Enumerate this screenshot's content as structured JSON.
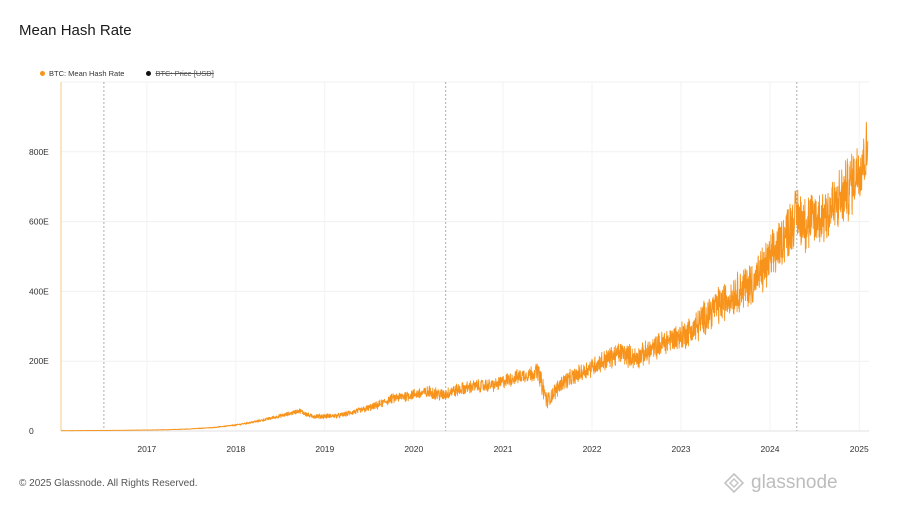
{
  "title": "Mean Hash Rate",
  "legend": [
    {
      "label": "BTC: Mean Hash Rate",
      "color": "#f7931a",
      "active": true
    },
    {
      "label": "BTC: Price [USD]",
      "color": "#111111",
      "active": false
    }
  ],
  "footer": "© 2025 Glassnode. All Rights Reserved.",
  "logo_text": "glassnode",
  "chart_data": {
    "type": "line",
    "title": "Mean Hash Rate",
    "xlabel": "",
    "ylabel": "",
    "x_ticks": [
      "2017",
      "2018",
      "2019",
      "2020",
      "2021",
      "2022",
      "2023",
      "2024",
      "2025"
    ],
    "y_ticks": [
      "0",
      "200E",
      "400E",
      "600E",
      "800E"
    ],
    "ylim": [
      0,
      1000
    ],
    "xlim": [
      "2016-01-15",
      "2025-02-10"
    ],
    "grid": true,
    "legend_position": "top-left",
    "halving_markers": [
      "2016-07-09",
      "2020-05-11",
      "2024-04-20"
    ],
    "series": [
      {
        "name": "BTC: Mean Hash Rate",
        "color": "#f7931a",
        "unit": "EH/s",
        "x": [
          "2016-01-15",
          "2016-04-01",
          "2016-07-01",
          "2016-10-01",
          "2017-01-01",
          "2017-04-01",
          "2017-07-01",
          "2017-10-01",
          "2018-01-01",
          "2018-04-01",
          "2018-06-01",
          "2018-08-01",
          "2018-09-20",
          "2018-11-01",
          "2018-12-15",
          "2019-03-01",
          "2019-06-01",
          "2019-08-01",
          "2019-10-01",
          "2020-01-01",
          "2020-03-10",
          "2020-05-01",
          "2020-06-01",
          "2020-09-01",
          "2020-12-01",
          "2021-01-15",
          "2021-03-01",
          "2021-05-01",
          "2021-05-25",
          "2021-06-15",
          "2021-07-01",
          "2021-07-15",
          "2021-09-01",
          "2021-11-01",
          "2022-01-01",
          "2022-03-01",
          "2022-05-01",
          "2022-07-01",
          "2022-09-01",
          "2022-11-01",
          "2023-01-01",
          "2023-03-01",
          "2023-05-01",
          "2023-07-01",
          "2023-09-01",
          "2023-11-01",
          "2024-01-01",
          "2024-03-01",
          "2024-04-20",
          "2024-06-01",
          "2024-08-01",
          "2024-10-01",
          "2024-12-01",
          "2025-01-01",
          "2025-02-05"
        ],
        "values": [
          0.8,
          1.2,
          1.6,
          2,
          2.8,
          3.8,
          6,
          10,
          17,
          28,
          38,
          48,
          58,
          43,
          42,
          44,
          60,
          72,
          92,
          105,
          112,
          102,
          113,
          128,
          132,
          145,
          155,
          165,
          172,
          120,
          85,
          98,
          140,
          160,
          185,
          205,
          225,
          208,
          232,
          258,
          272,
          295,
          345,
          372,
          405,
          430,
          490,
          560,
          620,
          595,
          615,
          650,
          710,
          760,
          800
        ],
        "noise": [
          0.3,
          0.3,
          0.3,
          0.4,
          0.5,
          0.6,
          0.8,
          1,
          2,
          3,
          4,
          5,
          6,
          6,
          6,
          6,
          8,
          10,
          12,
          14,
          16,
          16,
          16,
          16,
          16,
          18,
          18,
          20,
          22,
          26,
          22,
          20,
          20,
          22,
          24,
          26,
          28,
          28,
          30,
          32,
          36,
          40,
          44,
          48,
          52,
          56,
          60,
          66,
          72,
          74,
          76,
          78,
          80,
          82,
          84
        ]
      }
    ]
  }
}
